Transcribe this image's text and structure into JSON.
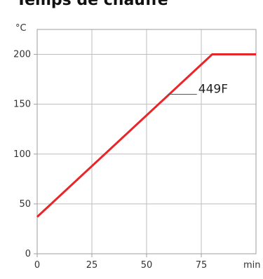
{
  "chart_data": {
    "type": "line",
    "title": "Temps de chauffe",
    "xlabel": "min",
    "ylabel": "°C",
    "xlim": [
      0,
      100
    ],
    "ylim": [
      0,
      225
    ],
    "x_ticks": [
      0,
      25,
      50,
      75
    ],
    "x_tick_labels": [
      "0",
      "25",
      "50",
      "75"
    ],
    "y_ticks": [
      0,
      50,
      100,
      150,
      200
    ],
    "y_tick_labels": [
      "0",
      "50",
      "100",
      "150",
      "200"
    ],
    "grid": true,
    "series": [
      {
        "name": "449F",
        "color": "#e8262a",
        "x": [
          0,
          80,
          100
        ],
        "y": [
          37,
          200,
          200
        ]
      }
    ],
    "annotation": {
      "text": "449F",
      "leader_from": [
        60,
        160
      ],
      "leader_to": [
        73,
        160
      ]
    }
  }
}
